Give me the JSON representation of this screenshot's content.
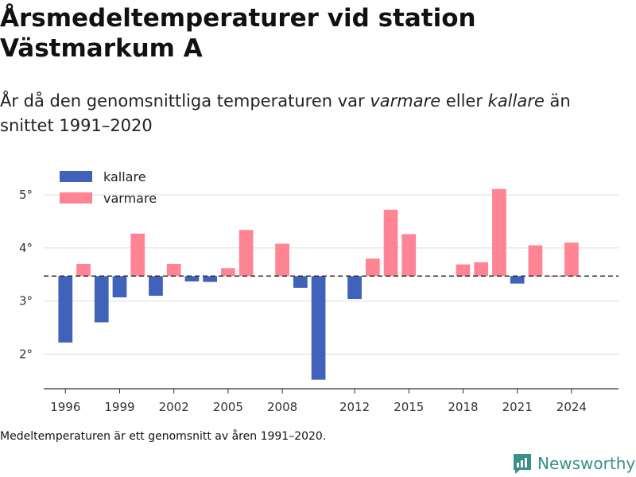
{
  "title": "Årsmedeltemperaturer vid station Västmarkum A",
  "subtitle": {
    "part1": "År då den genomsnittliga temperaturen var ",
    "warmer": "varmare",
    "part2": " eller ",
    "colder": "kallare",
    "part3": " än snittet 1991–2020"
  },
  "footnote": "Medeltemperaturen är ett genomsnitt av åren 1991–2020.",
  "brand": {
    "name": "Newsworthy",
    "icon": "newsworthy-logo-icon"
  },
  "colors": {
    "colder": "#4062bb",
    "warmer": "#ff8595",
    "baseline": "#333333",
    "grid": "#dddddd",
    "brand": "#3a8f8a"
  },
  "chart_data": {
    "type": "bar",
    "baseline": 3.47,
    "ylim": [
      1.35,
      5.3
    ],
    "yticks": [
      2,
      3,
      4,
      5
    ],
    "ytick_labels": [
      "2°",
      "3°",
      "4°",
      "5°"
    ],
    "xticks": [
      1996,
      1999,
      2002,
      2005,
      2008,
      2012,
      2015,
      2018,
      2021,
      2024
    ],
    "legend": {
      "placement": "top-left",
      "entries": [
        {
          "label": "kallare",
          "color_key": "colder"
        },
        {
          "label": "varmare",
          "color_key": "warmer"
        }
      ]
    },
    "grid": true,
    "x": [
      1996,
      1997,
      1998,
      1999,
      2000,
      2001,
      2002,
      2003,
      2004,
      2005,
      2006,
      2008,
      2009,
      2010,
      2012,
      2013,
      2014,
      2015,
      2018,
      2019,
      2020,
      2021,
      2022,
      2023,
      2024
    ],
    "values": [
      2.22,
      3.7,
      2.6,
      3.07,
      4.27,
      3.1,
      3.7,
      3.37,
      3.36,
      3.62,
      4.34,
      4.08,
      3.25,
      1.52,
      3.04,
      3.8,
      4.72,
      4.26,
      3.69,
      3.73,
      5.11,
      3.33,
      4.05,
      3.48,
      4.1
    ]
  }
}
